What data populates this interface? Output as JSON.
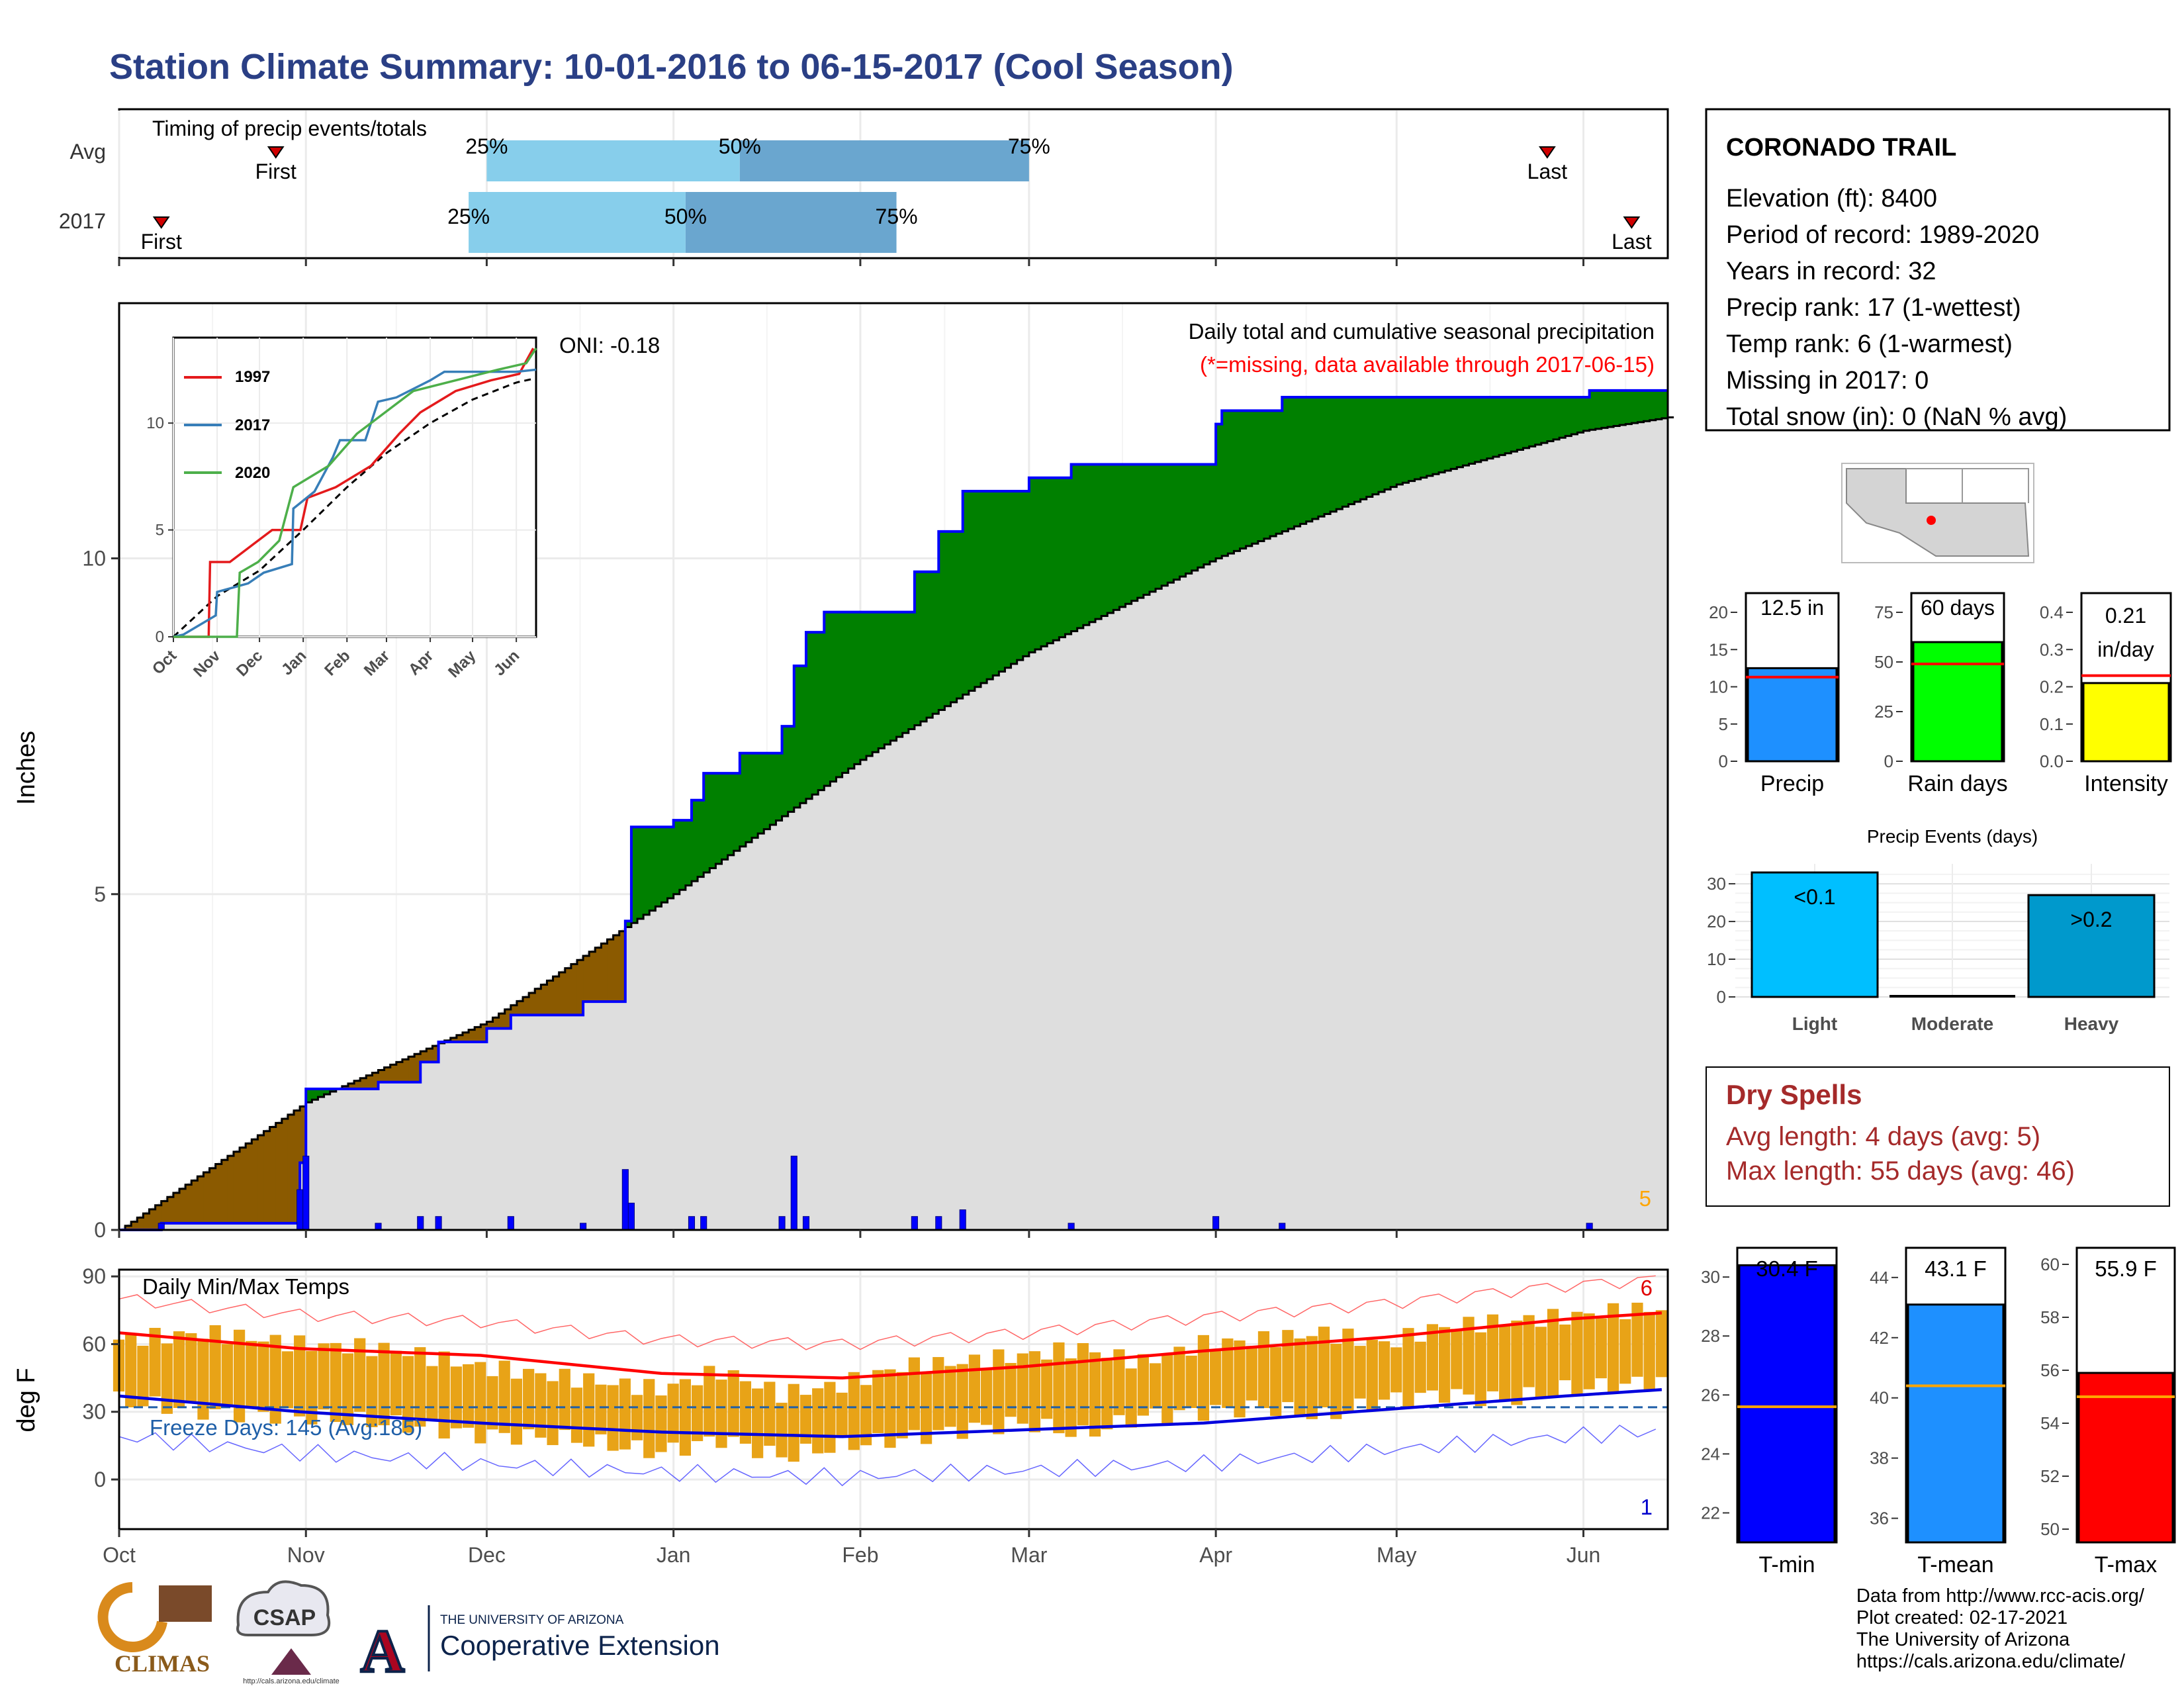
{
  "title": "Station Climate Summary: 10-01-2016 to 06-15-2017 (Cool Season)",
  "chart_data": [
    {
      "type": "bar",
      "panel": "timing",
      "title": "Timing of precip events/totals",
      "categories": [
        "Avg",
        "2017"
      ],
      "series": [
        {
          "name": "Avg",
          "first": "Oct 27",
          "q25": "Dec 1",
          "q50": "Jan 12",
          "q75": "Mar 1",
          "last": "May 26"
        },
        {
          "name": "2017",
          "first": "Oct 8",
          "q25": "Nov 28",
          "q50": "Jan 3",
          "q75": "Feb 7",
          "last": "Jun 9"
        }
      ],
      "labels": {
        "first": "First",
        "last": "Last",
        "q25": "25%",
        "q50": "50%",
        "q75": "75%"
      }
    },
    {
      "type": "area",
      "panel": "precip",
      "title": "Daily total and cumulative seasonal precipitation",
      "subtitle": "(*=missing, data available through 2017-06-15)",
      "ylabel": "Inches",
      "ylim": [
        0,
        13.8
      ],
      "yticks": [
        0,
        5,
        10
      ],
      "xlim": [
        "2016-10-01",
        "2017-06-15"
      ],
      "xticks": [
        "Oct",
        "Nov",
        "Dec",
        "Jan",
        "Feb",
        "Mar",
        "Apr",
        "May",
        "Jun"
      ],
      "oni": "ONI: -0.18",
      "corner_count": "5",
      "cumulative_2017": [
        {
          "date": "2016-10-01",
          "value": 0
        },
        {
          "date": "2016-10-08",
          "value": 0.1
        },
        {
          "date": "2016-10-14",
          "value": 0.1
        },
        {
          "date": "2016-10-31",
          "value": 1.0
        },
        {
          "date": "2016-11-01",
          "value": 2.1
        },
        {
          "date": "2016-11-13",
          "value": 2.2
        },
        {
          "date": "2016-11-20",
          "value": 2.5
        },
        {
          "date": "2016-11-23",
          "value": 2.8
        },
        {
          "date": "2016-12-01",
          "value": 3.0
        },
        {
          "date": "2016-12-05",
          "value": 3.2
        },
        {
          "date": "2016-12-17",
          "value": 3.4
        },
        {
          "date": "2016-12-24",
          "value": 4.6
        },
        {
          "date": "2016-12-25",
          "value": 6.0
        },
        {
          "date": "2017-01-01",
          "value": 6.1
        },
        {
          "date": "2017-01-04",
          "value": 6.4
        },
        {
          "date": "2017-01-06",
          "value": 6.8
        },
        {
          "date": "2017-01-12",
          "value": 7.1
        },
        {
          "date": "2017-01-19",
          "value": 7.5
        },
        {
          "date": "2017-01-21",
          "value": 8.4
        },
        {
          "date": "2017-01-23",
          "value": 8.9
        },
        {
          "date": "2017-01-26",
          "value": 9.2
        },
        {
          "date": "2017-02-06",
          "value": 9.2
        },
        {
          "date": "2017-02-10",
          "value": 9.8
        },
        {
          "date": "2017-02-14",
          "value": 10.4
        },
        {
          "date": "2017-02-18",
          "value": 11.0
        },
        {
          "date": "2017-03-01",
          "value": 11.2
        },
        {
          "date": "2017-03-08",
          "value": 11.4
        },
        {
          "date": "2017-03-25",
          "value": 11.4
        },
        {
          "date": "2017-04-01",
          "value": 12.0
        },
        {
          "date": "2017-04-02",
          "value": 12.2
        },
        {
          "date": "2017-04-12",
          "value": 12.4
        },
        {
          "date": "2017-06-01",
          "value": 12.4
        },
        {
          "date": "2017-06-02",
          "value": 12.5
        },
        {
          "date": "2017-06-15",
          "value": 12.5
        }
      ],
      "cumulative_avg": [
        {
          "date": "2016-10-01",
          "value": 0
        },
        {
          "date": "2016-11-01",
          "value": 1.9
        },
        {
          "date": "2016-12-01",
          "value": 3.1
        },
        {
          "date": "2017-01-01",
          "value": 5.0
        },
        {
          "date": "2017-02-01",
          "value": 7.0
        },
        {
          "date": "2017-03-01",
          "value": 8.6
        },
        {
          "date": "2017-04-01",
          "value": 10.0
        },
        {
          "date": "2017-05-01",
          "value": 11.1
        },
        {
          "date": "2017-06-01",
          "value": 11.9
        },
        {
          "date": "2017-06-15",
          "value": 12.1
        }
      ],
      "daily_2017": [
        {
          "date": "2016-10-08",
          "value": 0.1
        },
        {
          "date": "2016-10-31",
          "value": 0.6
        },
        {
          "date": "2016-11-01",
          "value": 1.1
        },
        {
          "date": "2016-11-13",
          "value": 0.1
        },
        {
          "date": "2016-11-20",
          "value": 0.2
        },
        {
          "date": "2016-11-23",
          "value": 0.2
        },
        {
          "date": "2016-12-05",
          "value": 0.2
        },
        {
          "date": "2016-12-17",
          "value": 0.1
        },
        {
          "date": "2016-12-24",
          "value": 0.9
        },
        {
          "date": "2016-12-25",
          "value": 0.4
        },
        {
          "date": "2017-01-04",
          "value": 0.2
        },
        {
          "date": "2017-01-06",
          "value": 0.2
        },
        {
          "date": "2017-01-19",
          "value": 0.2
        },
        {
          "date": "2017-01-21",
          "value": 1.1
        },
        {
          "date": "2017-01-23",
          "value": 0.2
        },
        {
          "date": "2017-02-10",
          "value": 0.2
        },
        {
          "date": "2017-02-14",
          "value": 0.2
        },
        {
          "date": "2017-02-18",
          "value": 0.3
        },
        {
          "date": "2017-03-08",
          "value": 0.1
        },
        {
          "date": "2017-04-01",
          "value": 0.2
        },
        {
          "date": "2017-04-12",
          "value": 0.1
        },
        {
          "date": "2017-06-02",
          "value": 0.1
        }
      ]
    },
    {
      "type": "line",
      "panel": "inset",
      "xticks": [
        "Oct",
        "Nov",
        "Dec",
        "Jan",
        "Feb",
        "Mar",
        "Apr",
        "May",
        "Jun"
      ],
      "yticks": [
        0,
        5,
        10
      ],
      "ylim": [
        0,
        14
      ],
      "series": [
        {
          "name": "1997",
          "color": "#e41a1c",
          "values": [
            [
              0,
              0
            ],
            [
              25,
              0
            ],
            [
              26,
              3.5
            ],
            [
              40,
              3.5
            ],
            [
              50,
              4
            ],
            [
              70,
              5
            ],
            [
              90,
              5
            ],
            [
              95,
              6.5
            ],
            [
              115,
              7
            ],
            [
              140,
              8
            ],
            [
              160,
              9.5
            ],
            [
              175,
              10.5
            ],
            [
              200,
              11.5
            ],
            [
              225,
              12
            ],
            [
              245,
              12.3
            ],
            [
              255,
              13.5
            ]
          ]
        },
        {
          "name": "2017",
          "color": "#377eb8",
          "values": [
            [
              0,
              0
            ],
            [
              7,
              0.1
            ],
            [
              30,
              1
            ],
            [
              31,
              2.1
            ],
            [
              53,
              2.5
            ],
            [
              64,
              3
            ],
            [
              84,
              3.4
            ],
            [
              85,
              6
            ],
            [
              100,
              6.8
            ],
            [
              113,
              8.4
            ],
            [
              118,
              9.2
            ],
            [
              136,
              9.2
            ],
            [
              145,
              11
            ],
            [
              158,
              11.2
            ],
            [
              182,
              12
            ],
            [
              192,
              12.4
            ],
            [
              243,
              12.4
            ],
            [
              257,
              12.5
            ]
          ]
        },
        {
          "name": "2020",
          "color": "#4daf4a",
          "values": [
            [
              0,
              0
            ],
            [
              45,
              0
            ],
            [
              47,
              3
            ],
            [
              60,
              3.5
            ],
            [
              75,
              4.5
            ],
            [
              85,
              7
            ],
            [
              110,
              8
            ],
            [
              130,
              9.5
            ],
            [
              150,
              10.5
            ],
            [
              170,
              11.5
            ],
            [
              200,
              12
            ],
            [
              230,
              12.5
            ],
            [
              250,
              12.8
            ],
            [
              257,
              13.5
            ]
          ]
        }
      ],
      "avg_style": "dashed"
    },
    {
      "type": "bar",
      "panel": "temps",
      "title": "Daily Min/Max Temps",
      "ylabel": "deg F",
      "ylim": [
        -22,
        93
      ],
      "yticks": [
        0,
        30,
        60,
        90
      ],
      "xticks": [
        "Oct",
        "Nov",
        "Dec",
        "Jan",
        "Feb",
        "Mar",
        "Apr",
        "May",
        "Jun"
      ],
      "freeze_label": "Freeze Days: 145 (Avg:185)",
      "record_high_count": "6",
      "record_low_count": "1",
      "avg_max": [
        [
          0,
          65
        ],
        [
          30,
          58
        ],
        [
          60,
          55
        ],
        [
          90,
          47
        ],
        [
          120,
          45
        ],
        [
          150,
          50
        ],
        [
          180,
          57
        ],
        [
          210,
          63
        ],
        [
          240,
          71
        ],
        [
          257,
          74
        ]
      ],
      "avg_min": [
        [
          0,
          37
        ],
        [
          30,
          30
        ],
        [
          60,
          25
        ],
        [
          90,
          21
        ],
        [
          120,
          19
        ],
        [
          150,
          22
        ],
        [
          180,
          25
        ],
        [
          210,
          31
        ],
        [
          240,
          37
        ],
        [
          257,
          40
        ]
      ],
      "daily_max": [
        [
          0,
          62
        ],
        [
          15,
          65
        ],
        [
          30,
          60
        ],
        [
          45,
          58
        ],
        [
          60,
          50
        ],
        [
          75,
          45
        ],
        [
          90,
          40
        ],
        [
          100,
          48
        ],
        [
          110,
          38
        ],
        [
          120,
          42
        ],
        [
          130,
          50
        ],
        [
          140,
          52
        ],
        [
          150,
          55
        ],
        [
          160,
          58
        ],
        [
          170,
          52
        ],
        [
          180,
          60
        ],
        [
          190,
          62
        ],
        [
          200,
          65
        ],
        [
          210,
          60
        ],
        [
          220,
          68
        ],
        [
          230,
          70
        ],
        [
          240,
          72
        ],
        [
          250,
          75
        ],
        [
          257,
          76
        ]
      ],
      "daily_min": [
        [
          0,
          35
        ],
        [
          15,
          30
        ],
        [
          30,
          28
        ],
        [
          45,
          25
        ],
        [
          60,
          20
        ],
        [
          75,
          18
        ],
        [
          90,
          12
        ],
        [
          100,
          18
        ],
        [
          110,
          10
        ],
        [
          120,
          15
        ],
        [
          130,
          18
        ],
        [
          140,
          22
        ],
        [
          150,
          25
        ],
        [
          160,
          20
        ],
        [
          170,
          28
        ],
        [
          180,
          30
        ],
        [
          190,
          32
        ],
        [
          200,
          28
        ],
        [
          210,
          35
        ],
        [
          220,
          38
        ],
        [
          230,
          35
        ],
        [
          240,
          40
        ],
        [
          250,
          42
        ],
        [
          257,
          44
        ]
      ],
      "freeze_line": 32
    },
    {
      "type": "bar",
      "panel": "summary-precip",
      "categories": [
        "Precip",
        "Rain days",
        "Intensity"
      ],
      "values": [
        12.5,
        60,
        0.21
      ],
      "avg": [
        11.3,
        49,
        0.23
      ],
      "labels": [
        "12.5 in",
        "60 days",
        "0.21 in/day"
      ],
      "label_intensity_top": "0.21",
      "label_intensity_bottom": "in/day",
      "yticks": [
        [
          0,
          5,
          10,
          15,
          20
        ],
        [
          0,
          25,
          50,
          75
        ],
        [
          0.0,
          0.1,
          0.2,
          0.3,
          0.4
        ]
      ],
      "colors": [
        "#1e90ff",
        "#00ff00",
        "#ffff00"
      ]
    },
    {
      "type": "bar",
      "panel": "precip-events",
      "title": "Precip Events (days)",
      "categories": [
        "Light",
        "Moderate",
        "Heavy"
      ],
      "values": [
        33,
        0,
        27
      ],
      "labels": [
        "<0.1",
        "",
        ">0.2"
      ],
      "yticks": [
        0,
        10,
        20,
        30
      ],
      "colors": [
        "#00bfff",
        "#000000",
        "#0099cc"
      ]
    },
    {
      "type": "bar",
      "panel": "summary-temps",
      "categories": [
        "T-min",
        "T-mean",
        "T-max"
      ],
      "values": [
        30.4,
        43.1,
        55.9
      ],
      "avg": [
        25.6,
        40.4,
        55.0
      ],
      "labels": [
        "30.4 F",
        "43.1 F",
        "55.9 F"
      ],
      "yticks": [
        [
          22,
          24,
          26,
          28,
          30
        ],
        [
          36,
          38,
          40,
          42,
          44
        ],
        [
          50,
          52,
          54,
          56,
          58,
          60
        ]
      ],
      "colors": [
        "#0000ff",
        "#1e90ff",
        "#ff0000"
      ]
    }
  ],
  "station": {
    "name": "CORONADO TRAIL",
    "elevation": "Elevation (ft): 8400",
    "period": "Period of record: 1989-2020",
    "years": "Years in record: 32",
    "precip_rank": "Precip rank: 17 (1-wettest)",
    "temp_rank": "Temp rank: 6 (1-warmest)",
    "missing": "Missing in 2017: 0",
    "snow": "Total snow (in): 0 (NaN % avg)"
  },
  "dry_spells": {
    "title": "Dry Spells",
    "avg_length": "Avg length: 4 days (avg: 5)",
    "max_length": "Max length: 55 days (avg: 46)"
  },
  "colors": {
    "title": "#2a3f85",
    "above_avg": "#008000",
    "below_avg": "#8b5a00",
    "cum_fill": "#dedede",
    "daily_bar": "#0000ff",
    "temp_bar": "#e8a317",
    "dry_spell": "#a52a2a"
  },
  "logos": {
    "climas": "CLIMAS",
    "csap": "CSAP",
    "csap_url": "http://cals.arizona.edu/climate",
    "ua_small": "THE UNIVERSITY OF ARIZONA",
    "ua_big": "Cooperative Extension"
  },
  "footer": {
    "line1": "Data from http://www.rcc-acis.org/",
    "line2": "Plot created: 02-17-2021",
    "line3": "The University of Arizona",
    "line4": "https://cals.arizona.edu/climate/"
  }
}
